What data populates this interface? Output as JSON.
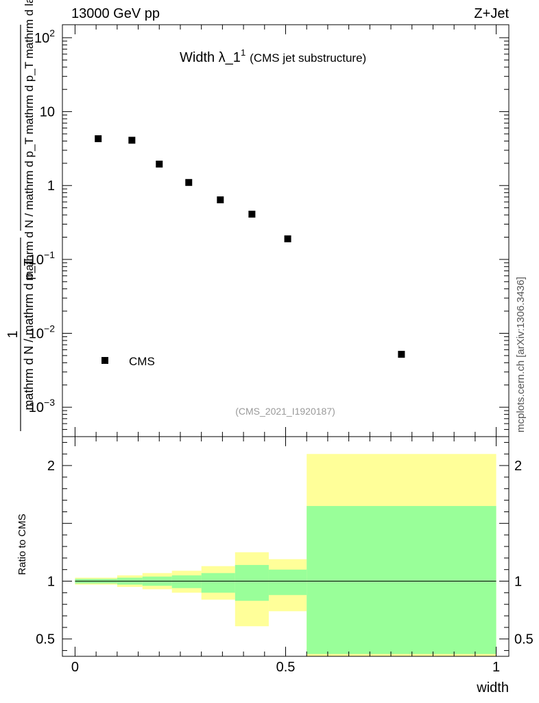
{
  "header": {
    "energy_label": "13000 GeV pp",
    "process_label": "Z+Jet"
  },
  "side_label": "mcplots.cern.ch [arXiv:1306.3436]",
  "chart_data": [
    {
      "type": "scatter",
      "title": "Width λ_1",
      "title_sup": "1",
      "subtitle": "(CMS jet substructure)",
      "analysis_id": "(CMS_2021_I1920187)",
      "xlabel": "width",
      "ylabel_numerator": "1",
      "ylabel_denominator": "mathrm d N / mathrm d p_T",
      "ylabel_rest": "mathrm d N / mathrm d p_T mathrm d p_T mathrm d lambda",
      "yscale": "log",
      "xlim": [
        -0.03,
        1.03
      ],
      "ylim": [
        0.0004,
        150
      ],
      "y_ticks": [
        {
          "value": 100,
          "base": "10",
          "exp": "2"
        },
        {
          "value": 10,
          "base": "10",
          "exp": ""
        },
        {
          "value": 1,
          "base": "1",
          "exp": ""
        },
        {
          "value": 0.1,
          "base": "10",
          "exp": "−1"
        },
        {
          "value": 0.01,
          "base": "10",
          "exp": "−2"
        },
        {
          "value": 0.001,
          "base": "10",
          "exp": "−3"
        }
      ],
      "legend": {
        "label": "CMS",
        "placement": "bottom-left"
      },
      "series": [
        {
          "name": "CMS",
          "x": [
            0.055,
            0.135,
            0.2,
            0.27,
            0.345,
            0.42,
            0.505,
            0.775
          ],
          "y": [
            4.3,
            4.1,
            1.95,
            1.1,
            0.64,
            0.41,
            0.19,
            0.0052
          ]
        }
      ]
    },
    {
      "type": "area",
      "ylabel": "Ratio to CMS",
      "xlim": [
        -0.03,
        1.03
      ],
      "ylim": [
        0.35,
        2.25
      ],
      "x_ticks": [
        {
          "value": 0,
          "label": "0"
        },
        {
          "value": 0.5,
          "label": "0.5"
        },
        {
          "value": 1,
          "label": "1"
        }
      ],
      "y_ticks": [
        {
          "value": 0.5,
          "label": "0.5"
        },
        {
          "value": 1,
          "label": "1"
        },
        {
          "value": 2,
          "label": "2"
        }
      ],
      "reference_line": 1,
      "bins": [
        0,
        0.1,
        0.16,
        0.23,
        0.3,
        0.38,
        0.46,
        0.55,
        1.0
      ],
      "bands": [
        {
          "name": "outer",
          "color": "#ffff99",
          "low": [
            0.97,
            0.95,
            0.93,
            0.9,
            0.84,
            0.61,
            0.74,
            0.33
          ],
          "high": [
            1.03,
            1.05,
            1.07,
            1.09,
            1.13,
            1.25,
            1.19,
            2.1
          ]
        },
        {
          "name": "inner",
          "color": "#99ff99",
          "low": [
            0.98,
            0.97,
            0.96,
            0.94,
            0.9,
            0.83,
            0.88,
            0.37
          ],
          "high": [
            1.02,
            1.03,
            1.04,
            1.05,
            1.07,
            1.14,
            1.1,
            1.65
          ]
        }
      ]
    }
  ],
  "colors": {
    "marker": "#000000",
    "axis": "#000000",
    "id_text": "#999999",
    "side_text": "#555555"
  }
}
